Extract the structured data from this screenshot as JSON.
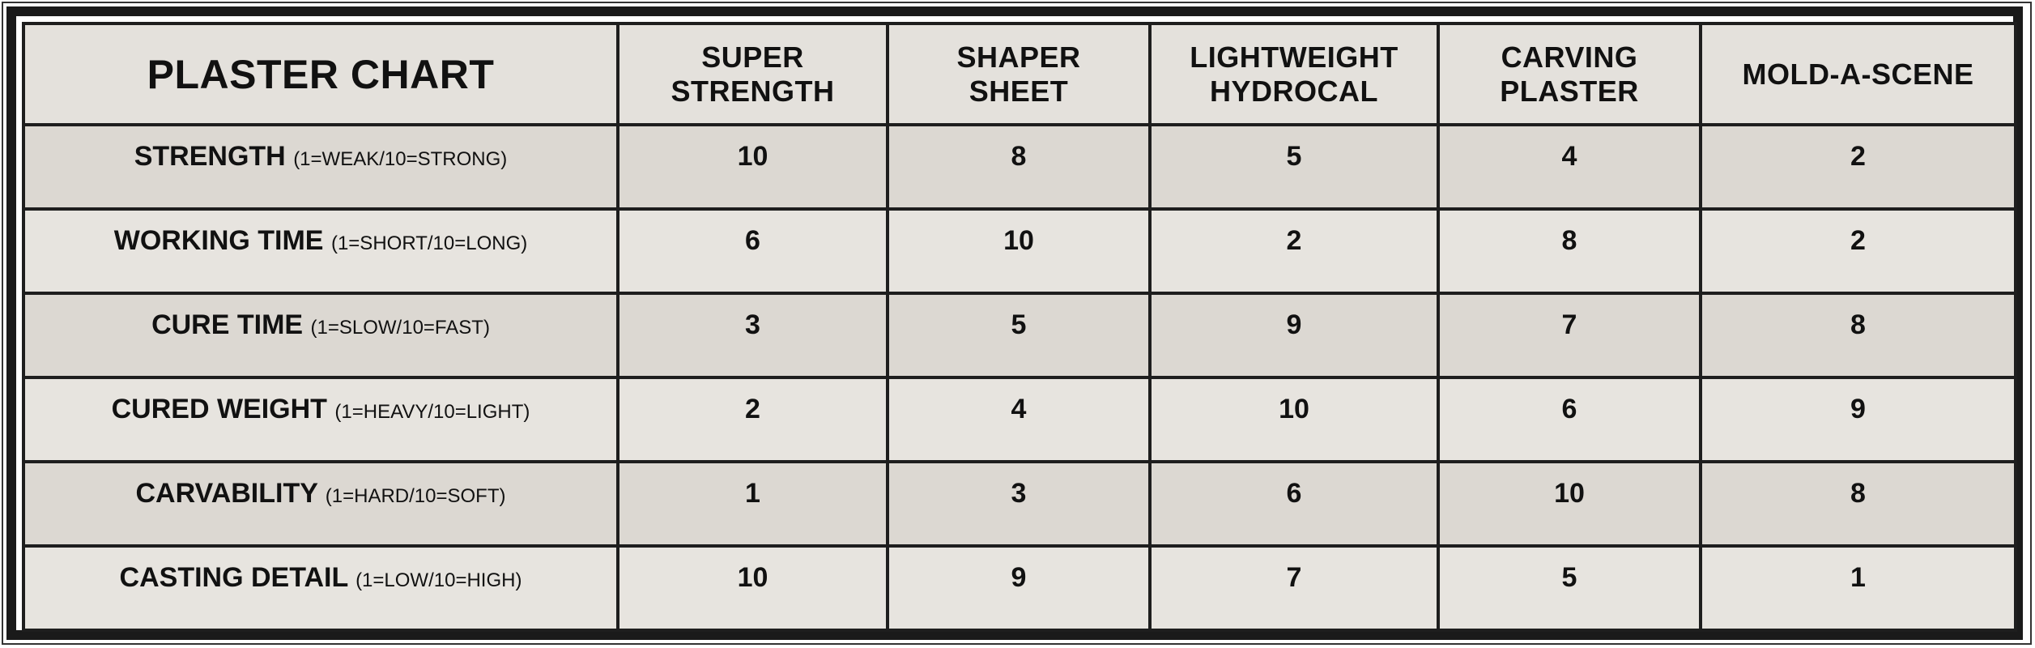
{
  "title": "PLASTER CHART",
  "columns": [
    [
      "SUPER",
      "STRENGTH"
    ],
    [
      "SHAPER",
      "SHEET"
    ],
    [
      "LIGHTWEIGHT",
      "HYDROCAL"
    ],
    [
      "CARVING",
      "PLASTER"
    ],
    [
      "MOLD-A-SCENE",
      ""
    ]
  ],
  "rows": [
    {
      "label": "STRENGTH",
      "scale": "(1=WEAK/10=STRONG)",
      "values": [
        "10",
        "8",
        "5",
        "4",
        "2"
      ]
    },
    {
      "label": "WORKING TIME",
      "scale": "(1=SHORT/10=LONG)",
      "values": [
        "6",
        "10",
        "2",
        "8",
        "2"
      ]
    },
    {
      "label": "CURE TIME",
      "scale": "(1=SLOW/10=FAST)",
      "values": [
        "3",
        "5",
        "9",
        "7",
        "8"
      ]
    },
    {
      "label": "CURED WEIGHT",
      "scale": "(1=HEAVY/10=LIGHT)",
      "values": [
        "2",
        "4",
        "10",
        "6",
        "9"
      ]
    },
    {
      "label": "CARVABILITY",
      "scale": "(1=HARD/10=SOFT)",
      "values": [
        "1",
        "3",
        "6",
        "10",
        "8"
      ]
    },
    {
      "label": "CASTING DETAIL",
      "scale": "(1=LOW/10=HIGH)",
      "values": [
        "10",
        "9",
        "7",
        "5",
        "1"
      ]
    }
  ]
}
